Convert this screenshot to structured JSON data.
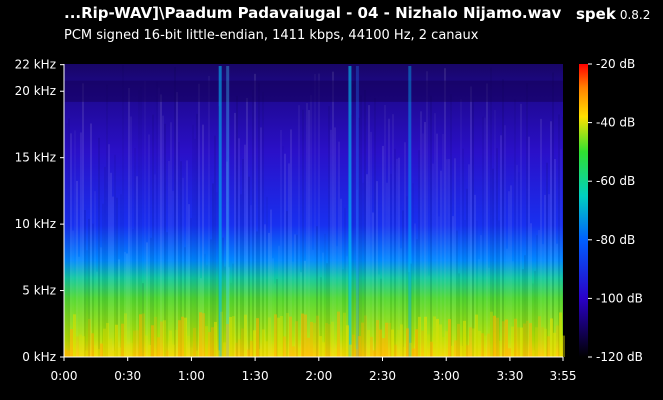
{
  "window": {
    "title": "...Rip-WAV]\\Paadum Padavaiugal - 04 - Nizhalo Nijamo.wav",
    "app_name": "spek",
    "app_version": "0.8.2",
    "subtitle": "PCM signed 16-bit little-endian, 1411 kbps, 44100 Hz, 2 canaux"
  },
  "spectrogram": {
    "freq_ticks": [
      {
        "label": "22 kHz",
        "khz": 22
      },
      {
        "label": "20 kHz",
        "khz": 20
      },
      {
        "label": "15 kHz",
        "khz": 15
      },
      {
        "label": "10 kHz",
        "khz": 10
      },
      {
        "label": "5 kHz",
        "khz": 5
      },
      {
        "label": "0 kHz",
        "khz": 0
      }
    ],
    "freq_max_khz": 22.05,
    "time_ticks": [
      {
        "label": "0:00",
        "sec": 0
      },
      {
        "label": "0:30",
        "sec": 30
      },
      {
        "label": "1:00",
        "sec": 60
      },
      {
        "label": "1:30",
        "sec": 90
      },
      {
        "label": "2:00",
        "sec": 120
      },
      {
        "label": "2:30",
        "sec": 150
      },
      {
        "label": "3:00",
        "sec": 180
      },
      {
        "label": "3:30",
        "sec": 210
      },
      {
        "label": "3:55",
        "sec": 235
      }
    ],
    "duration_sec": 235,
    "colors": [
      "#000000",
      "#1a0066",
      "#2a00c8",
      "#0050ff",
      "#00c8d8",
      "#00d060",
      "#a0e000",
      "#ffe000",
      "#ff8000",
      "#ff0000"
    ]
  },
  "color_scale": {
    "ticks": [
      {
        "label": "-20 dB",
        "db": -20
      },
      {
        "label": "-40 dB",
        "db": -40
      },
      {
        "label": "-60 dB",
        "db": -60
      },
      {
        "label": "-80 dB",
        "db": -80
      },
      {
        "label": "-100 dB",
        "db": -100
      },
      {
        "label": "-120 dB",
        "db": -120
      }
    ],
    "db_max": -20,
    "db_min": -120
  }
}
